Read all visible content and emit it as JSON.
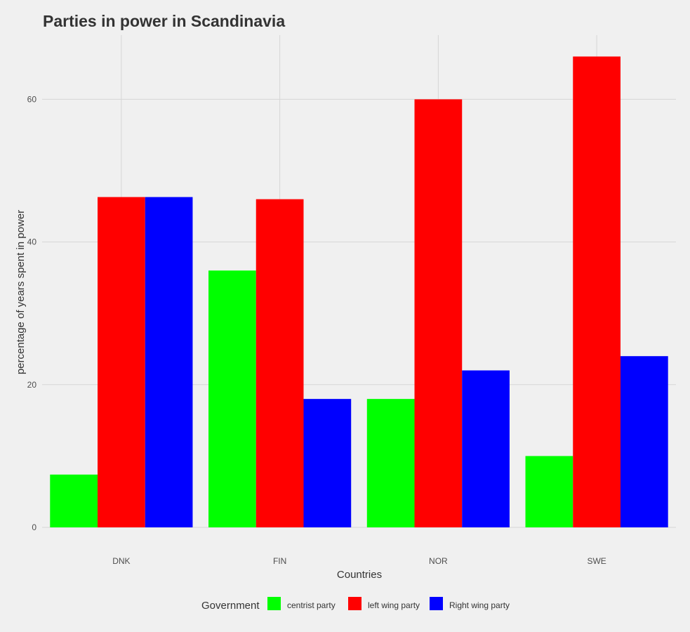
{
  "chart_data": {
    "type": "bar",
    "title": "Parties in power in Scandinavia",
    "xlabel": "Countries",
    "ylabel": "percentage of years spent in power",
    "categories": [
      "DNK",
      "FIN",
      "NOR",
      "SWE"
    ],
    "series": [
      {
        "name": "centrist party",
        "color": "#00ff00",
        "values": [
          7.4,
          36.0,
          18.0,
          10.0
        ]
      },
      {
        "name": "left wing party",
        "color": "#ff0000",
        "values": [
          46.3,
          46.0,
          60.0,
          66.0
        ]
      },
      {
        "name": "Right wing party",
        "color": "#0000ff",
        "values": [
          46.3,
          18.0,
          22.0,
          24.0
        ]
      }
    ],
    "ylim": [
      0,
      69
    ],
    "yticks": [
      0,
      20,
      40,
      60
    ],
    "ytick_labels": [
      "0",
      "20",
      "40",
      "60"
    ],
    "grid": true,
    "legend": {
      "title": "Government",
      "position": "bottom"
    }
  }
}
